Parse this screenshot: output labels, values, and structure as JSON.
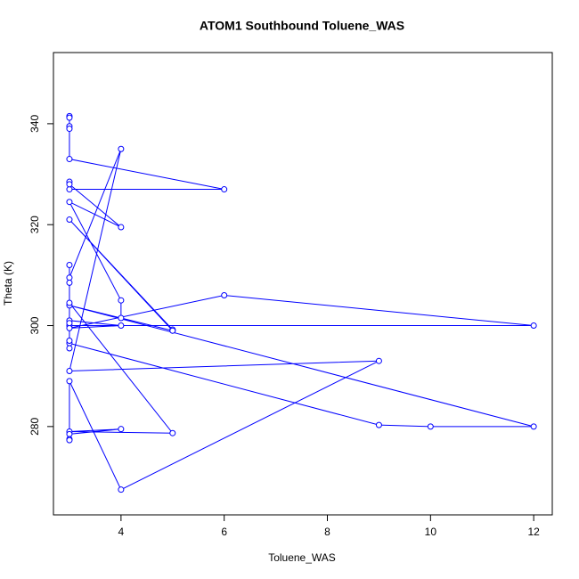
{
  "chart_data": {
    "type": "scatter-line",
    "title": "ATOM1 Southbound Toluene_WAS",
    "x_label": "Toluene_WAS",
    "y_label": "Theta (K)",
    "color": "#0000ff",
    "x": [
      3,
      3,
      3,
      3,
      3,
      6,
      3,
      3,
      3,
      4,
      3,
      4,
      4,
      5,
      3,
      5,
      5,
      3,
      12,
      10,
      9,
      3,
      3,
      3,
      12,
      6,
      3,
      4,
      3,
      3,
      3,
      5,
      3,
      4,
      3,
      3,
      3,
      3,
      4,
      9,
      3,
      4,
      3,
      3,
      3,
      3
    ],
    "y": [
      341.5,
      341.2,
      339.5,
      339,
      333,
      327,
      327,
      328.5,
      328,
      319.5,
      324.5,
      305,
      301.5,
      299,
      321,
      299.2,
      299,
      304,
      280,
      280,
      280.3,
      296.5,
      295.5,
      300,
      300,
      306,
      299.5,
      300,
      301,
      300.5,
      304.5,
      278.7,
      279,
      279.5,
      278.5,
      277.5,
      277.3,
      289,
      267.5,
      293,
      291,
      335,
      309.5,
      308.5,
      312,
      297
    ],
    "xlim": [
      2.69,
      12.36
    ],
    "ylim": [
      262.5,
      354.1
    ],
    "xticks": [
      4,
      6,
      8,
      10,
      12
    ],
    "yticks": [
      280,
      300,
      320,
      340
    ]
  }
}
